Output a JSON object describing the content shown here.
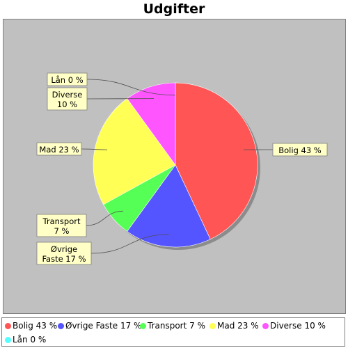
{
  "chart_data": {
    "type": "pie",
    "title": "Udgifter",
    "slices": [
      {
        "label": "Bolig 43 %",
        "legend": "Bolig 43 %",
        "value": 43,
        "color": "#ff5555"
      },
      {
        "label": "Øvrige Faste 17 %",
        "legend": "Øvrige Faste 17 %",
        "value": 17,
        "color": "#5555ff"
      },
      {
        "label": "Transport 7 %",
        "legend": "Transport 7 %",
        "value": 7,
        "color": "#55ff55"
      },
      {
        "label": "Mad 23 %",
        "legend": "Mad 23 %",
        "value": 23,
        "color": "#ffff55"
      },
      {
        "label": "Diverse 10 %",
        "legend": "Diverse 10 %",
        "value": 10,
        "color": "#ff55ff"
      },
      {
        "label": "Lån 0 %",
        "legend": "Lån 0 %",
        "value": 0,
        "color": "#55ffff"
      }
    ],
    "legend_position": "bottom",
    "background": "#c0c0c0"
  }
}
